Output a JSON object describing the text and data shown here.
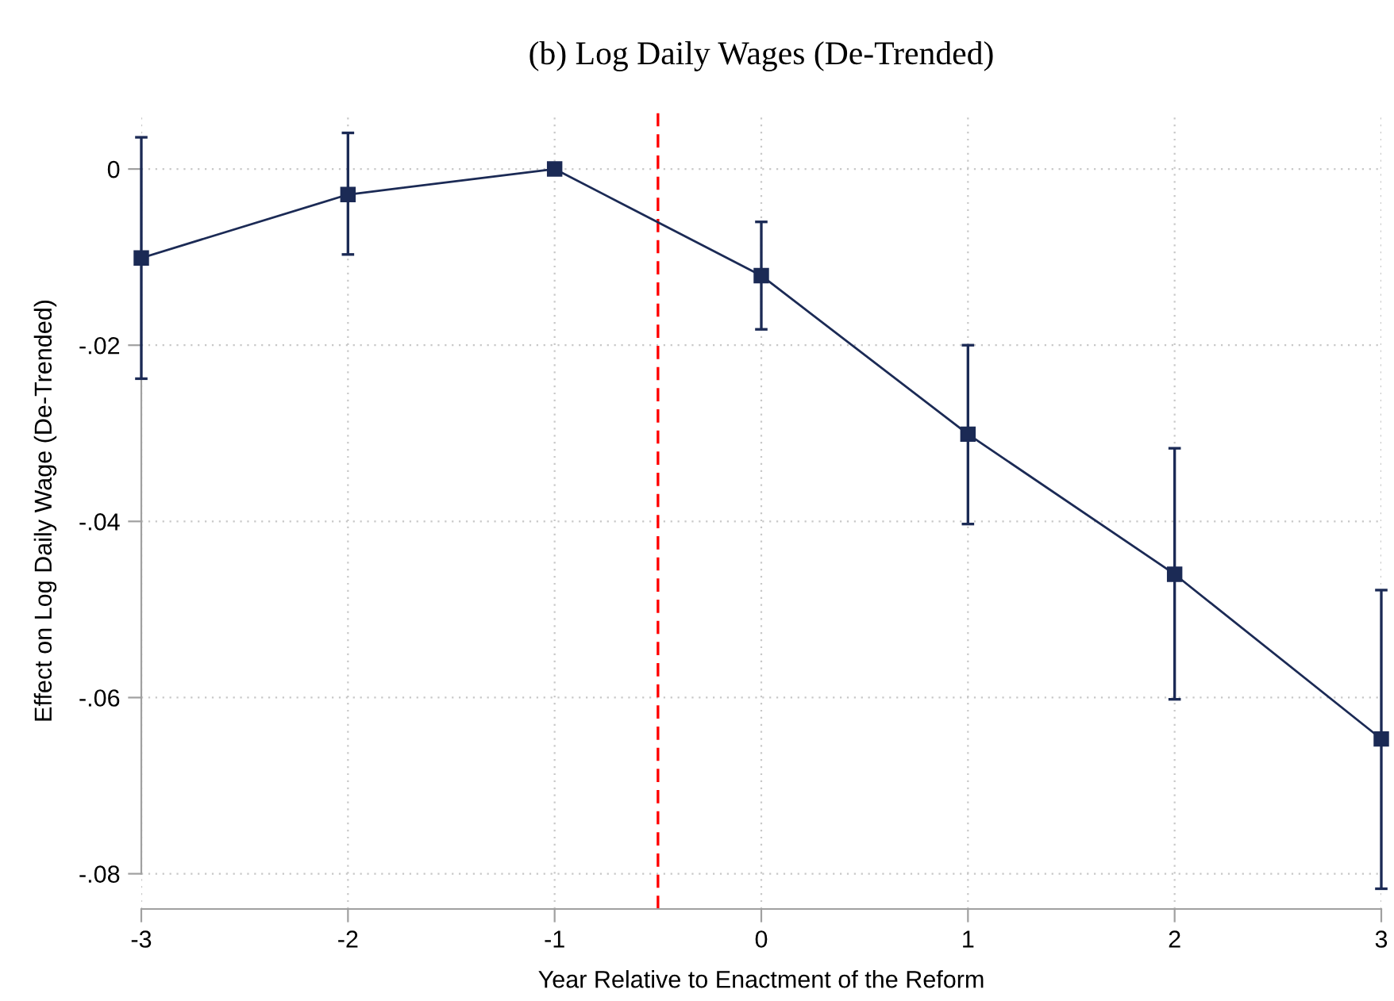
{
  "chart_data": {
    "type": "line",
    "title": "(b) Log Daily Wages (De-Trended)",
    "xlabel": "Year Relative to Enactment of the Reform",
    "ylabel": "Effect on Log Daily Wage (De-Trended)",
    "x": [
      -3,
      -2,
      -1,
      0,
      1,
      2,
      3
    ],
    "series": [
      {
        "color": "#1b2a55",
        "values": [
          -0.0101,
          -0.0029,
          0,
          -0.0121,
          -0.0301,
          -0.046,
          -0.0647
        ],
        "errors": [
          [
            -0.0238,
            0.0036
          ],
          [
            -0.0097,
            0.0041
          ],
          null,
          [
            -0.0182,
            -0.006
          ],
          [
            -0.0403,
            -0.02
          ],
          [
            -0.0602,
            -0.0317
          ],
          [
            -0.0817,
            -0.0478
          ]
        ]
      }
    ],
    "xlim": [
      -3,
      3
    ],
    "xticks": [
      -3,
      -2,
      -1,
      0,
      1,
      2,
      3
    ],
    "ylim": [
      -0.084,
      0.0064
    ],
    "yticks": [
      {
        "value": -0.08,
        "label": "-.08"
      },
      {
        "value": -0.06,
        "label": "-.06"
      },
      {
        "value": -0.04,
        "label": "-.04"
      },
      {
        "value": -0.02,
        "label": "-.02"
      },
      {
        "value": 0,
        "label": "0"
      }
    ],
    "ref_lines": [
      {
        "axis": "x",
        "value": -0.5,
        "color": "#ff0000",
        "line_style": "dashed"
      }
    ],
    "grid": true,
    "marker": "square",
    "line_style": "solid",
    "legend": false
  }
}
